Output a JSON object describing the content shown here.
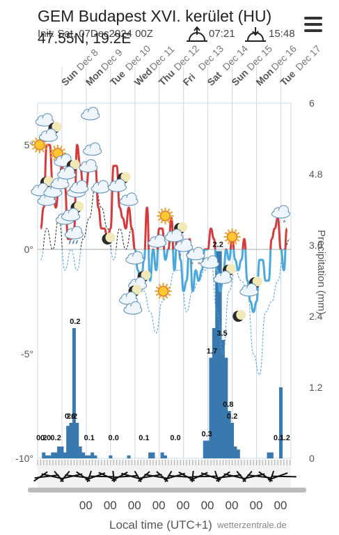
{
  "header": {
    "title": "GEM Budapest XVI. kerület (HU)",
    "coords": "47.55N, 19.2E",
    "init": "Init: Sat, 07Dec2024 00Z",
    "sunrise": "07:21",
    "sunset": "15:48",
    "menu_icon": "hamburger-menu-icon"
  },
  "footer": {
    "xlabel": "Local time (UTC+1)",
    "credit": "wetterzentrale.de",
    "hour_label": "00"
  },
  "chart_data": {
    "type": "line+bar",
    "days": [
      "Sun Dec 8",
      "Mon Dec 9",
      "Tue Dec 10",
      "Wed Dec 11",
      "Thu Dec 12",
      "Fri Dec 13",
      "Sat Dec 14",
      "Sun Dec 15",
      "Mon Dec 16",
      "Tue Dec 17"
    ],
    "day_start_hours": [
      0,
      24,
      48,
      72,
      96,
      120,
      144,
      168,
      192,
      216
    ],
    "x_range_hours": [
      -24,
      226
    ],
    "ylabel_left_ticks": [
      "5°",
      "0°",
      "-5°",
      "-10°"
    ],
    "ylim_temp": [
      -10,
      7
    ],
    "ylabel_right": "Precipitation (mm)",
    "ylim_precip": [
      0,
      6
    ],
    "right_ticks": [
      "6",
      "4.8",
      "3.6",
      "2.4",
      "1.2",
      "0"
    ],
    "series": [
      {
        "name": "Temperature",
        "x_hours": [
          -21,
          -18,
          -15,
          -12,
          -9,
          -6,
          -3,
          0,
          3,
          6,
          9,
          12,
          15,
          18,
          21,
          24,
          27,
          30,
          33,
          36,
          39,
          42,
          45,
          48,
          51,
          54,
          57,
          60,
          63,
          66,
          69,
          72,
          75,
          78,
          81,
          84,
          87,
          90,
          93,
          96,
          99,
          102,
          105,
          108,
          111,
          114,
          117,
          120,
          123,
          126,
          129,
          132,
          135,
          138,
          141,
          144,
          147,
          150,
          153,
          156,
          159,
          162,
          165,
          168,
          171,
          174,
          177,
          180,
          183,
          186,
          189,
          192,
          195,
          198,
          201,
          204,
          207,
          210,
          213,
          216,
          219,
          222
        ],
        "values": [
          1,
          2,
          5,
          5,
          3,
          2,
          3,
          4,
          3,
          0.5,
          0.5,
          1,
          5,
          4,
          3,
          3,
          4,
          4,
          4,
          2,
          1,
          1,
          0.5,
          1,
          4,
          4,
          2,
          1.5,
          1,
          2,
          1,
          0,
          -1,
          -2,
          -0.5,
          2,
          -1.5,
          0,
          -1,
          1,
          1,
          -0.5,
          0,
          1.5,
          -1,
          1,
          -0.5,
          -2,
          -1.5,
          0.5,
          -2,
          -1,
          -1.5,
          -1,
          0,
          0,
          1,
          0.5,
          -1,
          -2,
          -1.5,
          0,
          -0.5,
          0.5,
          -0.5,
          -1,
          -0.5,
          0.5,
          -1.5,
          -2.5,
          -3,
          -2.5,
          -0.5,
          -0.5,
          -1.5,
          -1.5,
          0.5,
          1,
          1.5,
          0,
          -1,
          1
        ]
      },
      {
        "name": "Dew point",
        "x_hours": [
          -21,
          -15,
          -9,
          -3,
          3,
          9,
          15,
          21,
          27,
          33,
          39,
          45,
          51,
          57,
          63,
          69,
          75,
          81,
          87,
          93,
          99,
          105,
          111,
          117,
          123,
          129,
          135,
          141,
          147,
          153,
          159,
          165,
          171,
          177,
          183,
          189,
          195,
          201,
          207,
          213,
          219,
          225
        ],
        "values": [
          -0.5,
          1,
          0,
          1.5,
          -1,
          0,
          -1,
          0.5,
          1.5,
          3,
          2,
          1,
          -0.5,
          1,
          0,
          1,
          -1,
          -2,
          -3,
          -4,
          -2.5,
          -2,
          -1,
          -1,
          -3,
          -2,
          -1.5,
          -1,
          -0.5,
          -3,
          -5,
          -2,
          -1,
          -1.5,
          -2,
          -5,
          -6,
          -3,
          -2.5,
          -1.5,
          0,
          0.5
        ]
      }
    ],
    "precipitation": {
      "x_hours": [
        -21,
        -18,
        -15,
        -12,
        -9,
        -6,
        -3,
        0,
        3,
        6,
        9,
        12,
        15,
        18,
        21,
        24,
        27,
        30,
        33,
        36,
        39,
        42,
        45,
        48,
        51,
        54,
        57,
        60,
        63,
        66,
        69,
        72,
        75,
        78,
        81,
        84,
        87,
        90,
        93,
        96,
        99,
        102,
        105,
        108,
        111,
        114,
        117,
        120,
        123,
        126,
        129,
        132,
        135,
        138,
        141,
        144,
        147,
        150,
        153,
        156,
        159,
        162,
        165,
        168,
        171,
        174,
        177,
        180,
        183,
        186,
        189,
        192,
        195,
        198,
        201,
        204,
        207,
        210,
        213,
        216,
        219,
        222
      ],
      "values": [
        0,
        0.1,
        0.05,
        0.05,
        0.1,
        0.1,
        0.2,
        0.2,
        0.1,
        0.55,
        0.6,
        2.2,
        0.6,
        0.2,
        0.1,
        0.05,
        0.05,
        0.1,
        0.05,
        0,
        0,
        0,
        0,
        0.05,
        0,
        0,
        0,
        0,
        0,
        0.05,
        0,
        0,
        0,
        0,
        0,
        0,
        0.1,
        0.1,
        0,
        0,
        0.1,
        0.05,
        0,
        0,
        0,
        0,
        0,
        0,
        0,
        0,
        0,
        0,
        0,
        0,
        0.3,
        0.3,
        1.7,
        2.2,
        3.5,
        3.5,
        2,
        1.7,
        0.8,
        0.6,
        0.2,
        0.15,
        0,
        0,
        0,
        0,
        0,
        0,
        0,
        0,
        0,
        0.1,
        0.1,
        0,
        0,
        1.2,
        0,
        0
      ],
      "labels": [
        {
          "x_hours": -20,
          "text": "0.2"
        },
        {
          "x_hours": -16,
          "text": "0.0"
        },
        {
          "x_hours": -6,
          "text": "0.2"
        },
        {
          "x_hours": 10,
          "text": "2.2"
        },
        {
          "x_hours": 8,
          "text": "0.6"
        },
        {
          "x_hours": 13,
          "text": "0.2"
        },
        {
          "x_hours": 27,
          "text": "0.1"
        },
        {
          "x_hours": 51,
          "text": "0.0"
        },
        {
          "x_hours": 81,
          "text": "0.1"
        },
        {
          "x_hours": 112,
          "text": "0.0"
        },
        {
          "x_hours": 143,
          "text": "0.3"
        },
        {
          "x_hours": 148,
          "text": "1.7"
        },
        {
          "x_hours": 154,
          "text": "2.2"
        },
        {
          "x_hours": 158,
          "text": "3.5"
        },
        {
          "x_hours": 164,
          "text": "0.8"
        },
        {
          "x_hours": 168,
          "text": "0.2"
        },
        {
          "x_hours": 214,
          "text": "0.1"
        },
        {
          "x_hours": 220,
          "text": "1.2"
        }
      ]
    },
    "weather_icons": [
      {
        "x_hours": -17,
        "temp": 6.2,
        "icon": "cloud"
      },
      {
        "x_hours": -22,
        "temp": 5.0,
        "icon": "sun"
      },
      {
        "x_hours": -12,
        "temp": 5.6,
        "icon": "moon-cloud"
      },
      {
        "x_hours": -20,
        "temp": 3.0,
        "icon": "moon-cloud"
      },
      {
        "x_hours": -15,
        "temp": 2.4,
        "icon": "cloud"
      },
      {
        "x_hours": -9,
        "temp": 2.8,
        "icon": "cloud"
      },
      {
        "x_hours": -2,
        "temp": 3.2,
        "icon": "cloud"
      },
      {
        "x_hours": 0,
        "temp": 4.4,
        "icon": "sun-cloud"
      },
      {
        "x_hours": 6,
        "temp": 3.8,
        "icon": "moon-cloud"
      },
      {
        "x_hours": 3,
        "temp": 1.5,
        "icon": "cloud"
      },
      {
        "x_hours": 10,
        "temp": 1.8,
        "icon": "moon-cloud"
      },
      {
        "x_hours": 12,
        "temp": 0.8,
        "icon": "cloud-rain"
      },
      {
        "x_hours": 14,
        "temp": 2.8,
        "icon": "cloud"
      },
      {
        "x_hours": 17,
        "temp": 3.0,
        "icon": "cloud"
      },
      {
        "x_hours": 26,
        "temp": 4.0,
        "icon": "cloud"
      },
      {
        "x_hours": 28,
        "temp": 6.5,
        "icon": "cloud"
      },
      {
        "x_hours": 30,
        "temp": 4.8,
        "icon": "cloud"
      },
      {
        "x_hours": 38,
        "temp": 3.0,
        "icon": "cloud"
      },
      {
        "x_hours": 45,
        "temp": 0.5,
        "icon": "moon"
      },
      {
        "x_hours": 56,
        "temp": 3.2,
        "icon": "moon-cloud"
      },
      {
        "x_hours": 66,
        "temp": 2.4,
        "icon": "cloud"
      },
      {
        "x_hours": 72,
        "temp": -0.4,
        "icon": "cloud"
      },
      {
        "x_hours": 76,
        "temp": -1.5,
        "icon": "moon-cloud"
      },
      {
        "x_hours": 67,
        "temp": -2.2,
        "icon": "moon-cloud"
      },
      {
        "x_hours": 70,
        "temp": -2.8,
        "icon": "cloud"
      },
      {
        "x_hours": 94,
        "temp": 0.4,
        "icon": "cloud"
      },
      {
        "x_hours": 102,
        "temp": 1.6,
        "icon": "sun"
      },
      {
        "x_hours": 100,
        "temp": -2.0,
        "icon": "sun"
      },
      {
        "x_hours": 112,
        "temp": 0.8,
        "icon": "moon-cloud"
      },
      {
        "x_hours": 120,
        "temp": 0.2,
        "icon": "cloud-snow"
      },
      {
        "x_hours": 132,
        "temp": -0.2,
        "icon": "cloud-snow"
      },
      {
        "x_hours": 146,
        "temp": -0.6,
        "icon": "cloud"
      },
      {
        "x_hours": 168,
        "temp": 0.6,
        "icon": "sun"
      },
      {
        "x_hours": 160,
        "temp": -1.2,
        "icon": "moon-cloud"
      },
      {
        "x_hours": 186,
        "temp": -1.8,
        "icon": "moon-cloud"
      },
      {
        "x_hours": 174,
        "temp": -3.2,
        "icon": "moon"
      },
      {
        "x_hours": 216,
        "temp": 1.8,
        "icon": "cloud-snow"
      }
    ]
  }
}
